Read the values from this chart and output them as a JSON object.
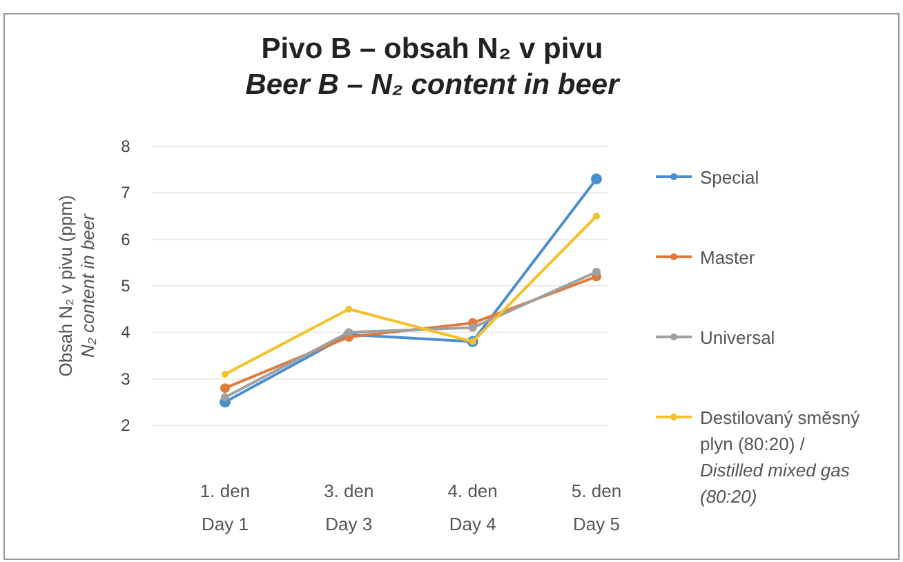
{
  "chart_data": {
    "type": "line",
    "title": "Pivo B – obsah N₂ v pivu",
    "subtitle": "Beer B – N₂ content in beer",
    "ylabel": "Obsah N₂ v pivu (ppm)\nN₂ content in beer",
    "categories": [
      "1. den\nDay 1",
      "3. den\nDay 3",
      "4. den\nDay 4",
      "5. den\nDay 5"
    ],
    "series": [
      {
        "name": "Special",
        "color": "#4a8fd0",
        "values": [
          2.5,
          3.95,
          3.8,
          7.3
        ]
      },
      {
        "name": "Master",
        "color": "#e07b3c",
        "values": [
          2.8,
          3.9,
          4.2,
          5.2
        ]
      },
      {
        "name": "Universal",
        "color": "#a0a0a0",
        "values": [
          2.6,
          4.0,
          4.1,
          5.3
        ]
      },
      {
        "name": "Destilovaný směsný plyn (80:20) /\nDistilled mixed gas (80:20)",
        "color": "#f5c12a",
        "values": [
          3.1,
          4.5,
          3.8,
          6.5
        ]
      }
    ],
    "ylim": [
      2,
      8
    ],
    "yticks": [
      2,
      3,
      4,
      5,
      6,
      7,
      8
    ],
    "grid": "y",
    "legend": "right",
    "marker": "circle",
    "line_style": "solid"
  }
}
